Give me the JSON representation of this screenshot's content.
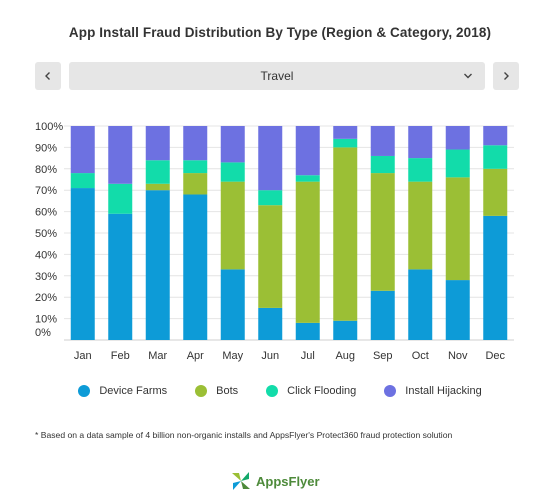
{
  "title": "App Install Fraud Distribution By Type (Region & Category, 2018)",
  "selector": {
    "value": "Travel"
  },
  "footnote": "* Based on a data sample of 4 billion non-organic installs and AppsFlyer's Protect360 fraud protection solution",
  "logo": {
    "text": "AppsFlyer"
  },
  "icons": {
    "prev": "chevron-left-icon",
    "next": "chevron-right-icon",
    "dropdown": "chevron-down-icon",
    "logo": "appsflyer-logo-icon"
  },
  "colors": {
    "Device Farms": "#0d9bd7",
    "Bots": "#9bbf35",
    "Click Flooding": "#12dcaa",
    "Install Hijacking": "#6d71e1"
  },
  "chart_data": {
    "type": "bar",
    "stacked": true,
    "categories": [
      "Jan",
      "Feb",
      "Mar",
      "Apr",
      "May",
      "Jun",
      "Jul",
      "Aug",
      "Sep",
      "Oct",
      "Nov",
      "Dec"
    ],
    "ylim": [
      0,
      100
    ],
    "yticks": [
      "0%",
      "10%",
      "20%",
      "30%",
      "40%",
      "50%",
      "60%",
      "70%",
      "80%",
      "90%",
      "100%"
    ],
    "grid": true,
    "legend_position": "bottom",
    "series": [
      {
        "name": "Device Farms",
        "values": [
          71,
          59,
          70,
          68,
          33,
          15,
          8,
          9,
          23,
          33,
          28,
          58
        ]
      },
      {
        "name": "Bots",
        "values": [
          0,
          0,
          3,
          10,
          41,
          48,
          66,
          81,
          55,
          41,
          48,
          22
        ]
      },
      {
        "name": "Click Flooding",
        "values": [
          7,
          14,
          11,
          6,
          9,
          7,
          3,
          4,
          8,
          11,
          13,
          11
        ]
      },
      {
        "name": "Install Hijacking",
        "values": [
          22,
          27,
          16,
          16,
          17,
          30,
          23,
          6,
          14,
          15,
          11,
          9
        ]
      }
    ]
  }
}
